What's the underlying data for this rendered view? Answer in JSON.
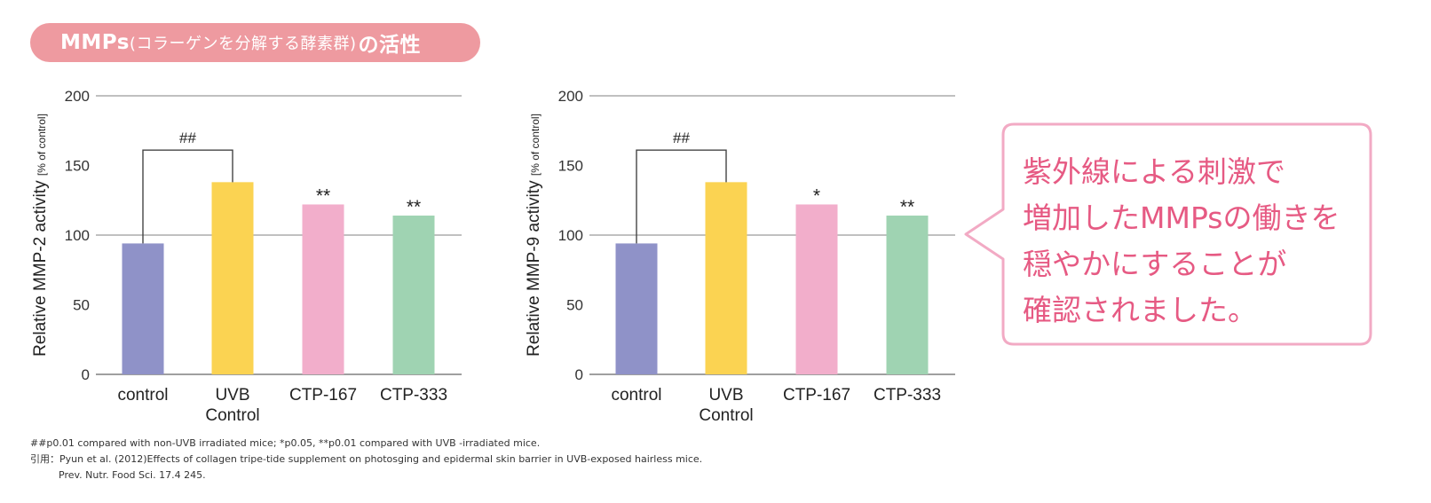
{
  "header": {
    "title_main": "MMPs",
    "title_paren": "(コラーゲンを分解する酵素群)",
    "title_tail": "の活性",
    "color": "#ee9aa0"
  },
  "chart_data": [
    {
      "type": "bar",
      "ylabel": "Relative MMP-2 activity",
      "ylabel_unit": "[% of control]",
      "categories": [
        "control",
        "UVB Control",
        "CTP-167",
        "CTP-333"
      ],
      "category_lines": [
        [
          "control"
        ],
        [
          "UVB",
          "Control"
        ],
        [
          "CTP-167"
        ],
        [
          "CTP-333"
        ]
      ],
      "values": [
        94,
        138,
        122,
        114
      ],
      "colors": [
        "#8f92c8",
        "#fbd352",
        "#f2aecb",
        "#9fd3b2"
      ],
      "significance": [
        "",
        "",
        "**",
        "**"
      ],
      "bracket": {
        "from": 0,
        "to": 1,
        "label": "##",
        "y": 161
      },
      "ylim": [
        0,
        200
      ],
      "yticks": [
        0,
        50,
        100,
        150,
        200
      ],
      "gridlines": [
        100,
        200
      ]
    },
    {
      "type": "bar",
      "ylabel": "Relative MMP-9 activity",
      "ylabel_unit": "[% of control]",
      "categories": [
        "control",
        "UVB Control",
        "CTP-167",
        "CTP-333"
      ],
      "category_lines": [
        [
          "control"
        ],
        [
          "UVB",
          "Control"
        ],
        [
          "CTP-167"
        ],
        [
          "CTP-333"
        ]
      ],
      "values": [
        94,
        138,
        122,
        114
      ],
      "colors": [
        "#8f92c8",
        "#fbd352",
        "#f2aecb",
        "#9fd3b2"
      ],
      "significance": [
        "",
        "",
        "*",
        "**"
      ],
      "bracket": {
        "from": 0,
        "to": 1,
        "label": "##",
        "y": 161
      },
      "ylim": [
        0,
        200
      ],
      "yticks": [
        0,
        50,
        100,
        150,
        200
      ],
      "gridlines": [
        100,
        200
      ]
    }
  ],
  "callout": {
    "lines": [
      "紫外線による刺激で",
      "増加したMMPsの働きを",
      "穏やかにすることが",
      "確認されました。"
    ],
    "text_color": "#e65a83",
    "border_color": "#f2aac4"
  },
  "footnotes": {
    "line1": "##p0.01 compared with non-UVB irradiated mice; *p0.05, **p0.01 compared with UVB -irradiated mice.",
    "line2": "引用：Pyun et al. (2012)Effects of collagen tripe-tide supplement on photosging and epidermal skin barrier in UVB-exposed hairless mice.",
    "line3": "Prev. Nutr. Food Sci. 17.4 245."
  }
}
